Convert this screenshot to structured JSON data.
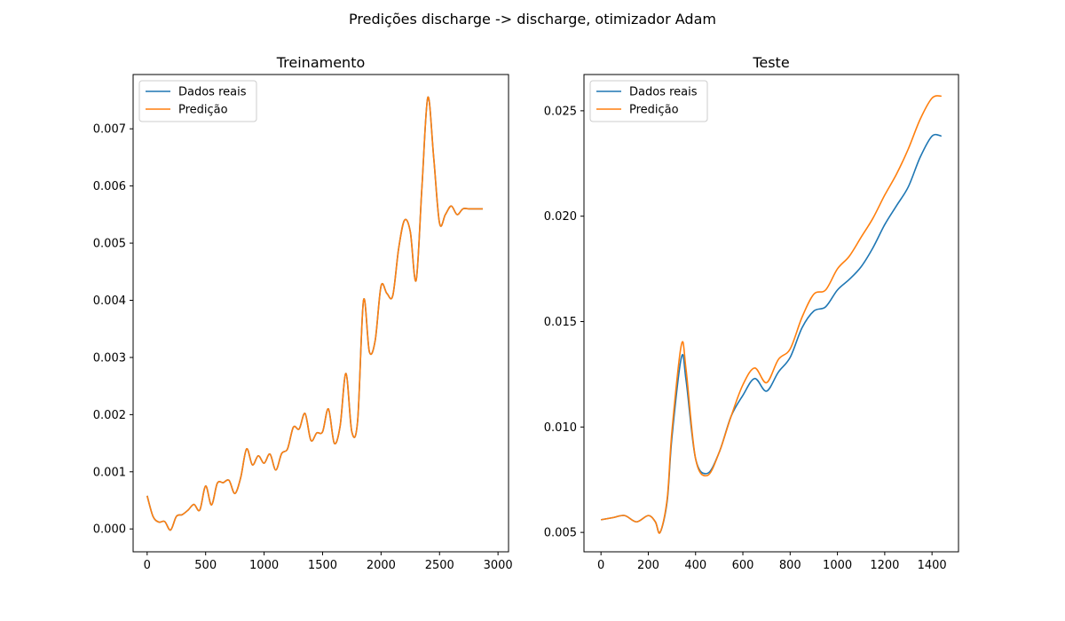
{
  "suptitle": "Predições discharge -> discharge, otimizador Adam",
  "chart_data": [
    {
      "type": "line",
      "title": "Treinamento",
      "xlabel": "",
      "ylabel": "",
      "xlim": [
        -120,
        3090
      ],
      "ylim": [
        -0.0004,
        0.00795
      ],
      "xticks": [
        0,
        500,
        1000,
        1500,
        2000,
        2500,
        3000
      ],
      "xtick_labels": [
        "0",
        "500",
        "1000",
        "1500",
        "2000",
        "2500",
        "3000"
      ],
      "yticks": [
        0,
        0.001,
        0.002,
        0.003,
        0.004,
        0.005,
        0.006,
        0.007
      ],
      "ytick_labels": [
        "0.000",
        "0.001",
        "0.002",
        "0.003",
        "0.004",
        "0.005",
        "0.006",
        "0.007"
      ],
      "legend_position": "top-left",
      "grid": false,
      "series": [
        {
          "name": "Dados reais",
          "color": "#1f77b4",
          "x": [
            0,
            50,
            100,
            150,
            200,
            250,
            300,
            350,
            400,
            450,
            500,
            550,
            600,
            650,
            700,
            750,
            800,
            850,
            900,
            950,
            1000,
            1050,
            1100,
            1150,
            1200,
            1250,
            1300,
            1350,
            1400,
            1450,
            1500,
            1550,
            1600,
            1650,
            1700,
            1750,
            1800,
            1850,
            1900,
            1950,
            2000,
            2050,
            2100,
            2150,
            2200,
            2250,
            2300,
            2350,
            2400,
            2450,
            2500,
            2550,
            2600,
            2650,
            2700,
            2750,
            2800,
            2850,
            2870
          ],
          "y": [
            0.00058,
            0.00022,
            0.00012,
            0.00013,
            -2e-05,
            0.00022,
            0.00025,
            0.00033,
            0.00043,
            0.00033,
            0.00075,
            0.00042,
            0.0008,
            0.00081,
            0.00085,
            0.00062,
            0.0009,
            0.0014,
            0.00112,
            0.00128,
            0.00115,
            0.00131,
            0.00103,
            0.00132,
            0.0014,
            0.00178,
            0.00175,
            0.00202,
            0.00155,
            0.00168,
            0.0017,
            0.0021,
            0.0015,
            0.0018,
            0.00272,
            0.0017,
            0.0019,
            0.004,
            0.0031,
            0.0033,
            0.00425,
            0.00412,
            0.00408,
            0.0049,
            0.0054,
            0.0052,
            0.00435,
            0.006,
            0.00755,
            0.0065,
            0.00535,
            0.0055,
            0.00565,
            0.0055,
            0.0056,
            0.0056,
            0.0056,
            0.0056,
            0.0056
          ]
        },
        {
          "name": "Predição",
          "color": "#ff7f0e",
          "x": [
            0,
            50,
            100,
            150,
            200,
            250,
            300,
            350,
            400,
            450,
            500,
            550,
            600,
            650,
            700,
            750,
            800,
            850,
            900,
            950,
            1000,
            1050,
            1100,
            1150,
            1200,
            1250,
            1300,
            1350,
            1400,
            1450,
            1500,
            1550,
            1600,
            1650,
            1700,
            1750,
            1800,
            1850,
            1900,
            1950,
            2000,
            2050,
            2100,
            2150,
            2200,
            2250,
            2300,
            2350,
            2400,
            2450,
            2500,
            2550,
            2600,
            2650,
            2700,
            2750,
            2800,
            2850,
            2870
          ],
          "y": [
            0.00058,
            0.00022,
            0.00012,
            0.00013,
            -2e-05,
            0.00022,
            0.00025,
            0.00033,
            0.00043,
            0.00033,
            0.00075,
            0.00042,
            0.0008,
            0.00081,
            0.00085,
            0.00062,
            0.0009,
            0.0014,
            0.00112,
            0.00128,
            0.00115,
            0.00131,
            0.00103,
            0.00132,
            0.0014,
            0.00178,
            0.00175,
            0.00202,
            0.00155,
            0.00168,
            0.0017,
            0.0021,
            0.0015,
            0.0018,
            0.00272,
            0.0017,
            0.0019,
            0.004,
            0.0031,
            0.0033,
            0.00425,
            0.00412,
            0.00408,
            0.0049,
            0.0054,
            0.0052,
            0.00435,
            0.006,
            0.00755,
            0.0065,
            0.00535,
            0.0055,
            0.00565,
            0.0055,
            0.0056,
            0.0056,
            0.0056,
            0.0056,
            0.0056
          ]
        }
      ]
    },
    {
      "type": "line",
      "title": "Teste",
      "xlabel": "",
      "ylabel": "",
      "xlim": [
        -72,
        1512
      ],
      "ylim": [
        0.00408,
        0.02672
      ],
      "xticks": [
        0,
        200,
        400,
        600,
        800,
        1000,
        1200,
        1400
      ],
      "xtick_labels": [
        "0",
        "200",
        "400",
        "600",
        "800",
        "1000",
        "1200",
        "1400"
      ],
      "yticks": [
        0.005,
        0.01,
        0.015,
        0.02,
        0.025
      ],
      "ytick_labels": [
        "0.005",
        "0.010",
        "0.015",
        "0.020",
        "0.025"
      ],
      "legend_position": "top-left",
      "grid": false,
      "series": [
        {
          "name": "Dados reais",
          "color": "#1f77b4",
          "x": [
            0,
            50,
            100,
            150,
            200,
            230,
            250,
            280,
            300,
            340,
            360,
            400,
            450,
            500,
            550,
            600,
            650,
            700,
            750,
            800,
            850,
            900,
            950,
            1000,
            1050,
            1100,
            1150,
            1200,
            1250,
            1300,
            1350,
            1400,
            1440
          ],
          "y": [
            0.0056,
            0.0057,
            0.0058,
            0.0055,
            0.0058,
            0.0055,
            0.005,
            0.0065,
            0.0095,
            0.0133,
            0.0122,
            0.0085,
            0.0078,
            0.0088,
            0.0105,
            0.0115,
            0.0123,
            0.0117,
            0.0126,
            0.0133,
            0.0147,
            0.0155,
            0.0157,
            0.0165,
            0.017,
            0.0176,
            0.0185,
            0.0196,
            0.0205,
            0.0214,
            0.0228,
            0.0238,
            0.0238
          ]
        },
        {
          "name": "Predição",
          "color": "#ff7f0e",
          "x": [
            0,
            50,
            100,
            150,
            200,
            230,
            250,
            280,
            300,
            340,
            360,
            400,
            450,
            500,
            550,
            600,
            650,
            700,
            750,
            800,
            850,
            900,
            950,
            1000,
            1050,
            1100,
            1150,
            1200,
            1250,
            1300,
            1350,
            1400,
            1440
          ],
          "y": [
            0.0056,
            0.0057,
            0.0058,
            0.0055,
            0.0058,
            0.0055,
            0.005,
            0.0066,
            0.0098,
            0.0139,
            0.0127,
            0.0085,
            0.0077,
            0.0088,
            0.0105,
            0.012,
            0.0128,
            0.0121,
            0.0132,
            0.0137,
            0.0152,
            0.0163,
            0.0165,
            0.0175,
            0.0181,
            0.019,
            0.0199,
            0.021,
            0.022,
            0.0232,
            0.0246,
            0.0256,
            0.0257
          ]
        }
      ]
    }
  ]
}
